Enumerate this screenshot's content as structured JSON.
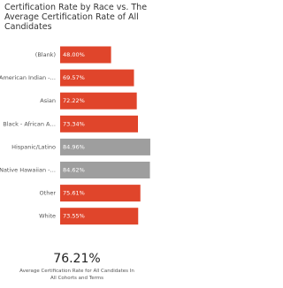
{
  "chart_data": {
    "type": "bar",
    "orientation": "horizontal",
    "title": "Certification Rate by Race vs. The Average Certification Rate of All Candidates",
    "categories": [
      "(Blank)",
      "American Indian -…",
      "Asian",
      "Black - African A…",
      "Hispanic/Latino",
      "Native Hawaiian -…",
      "Other",
      "White"
    ],
    "values": [
      48,
      69.57,
      72.22,
      73.34,
      84.96,
      84.62,
      75.61,
      73.55
    ],
    "value_labels": [
      "48.00%",
      "69.57%",
      "72.22%",
      "73.34%",
      "84.96%",
      "84.62%",
      "75.61%",
      "73.55%"
    ],
    "colors": [
      "#e0452b",
      "#e0452b",
      "#e0452b",
      "#e0452b",
      "#9e9e9e",
      "#9e9e9e",
      "#e0452b",
      "#e0452b"
    ],
    "xlim": [
      0,
      85
    ]
  },
  "card": {
    "value": "76.21%",
    "caption": "Average Certification Rate for All Candidates In All Cohorts and Terms"
  }
}
